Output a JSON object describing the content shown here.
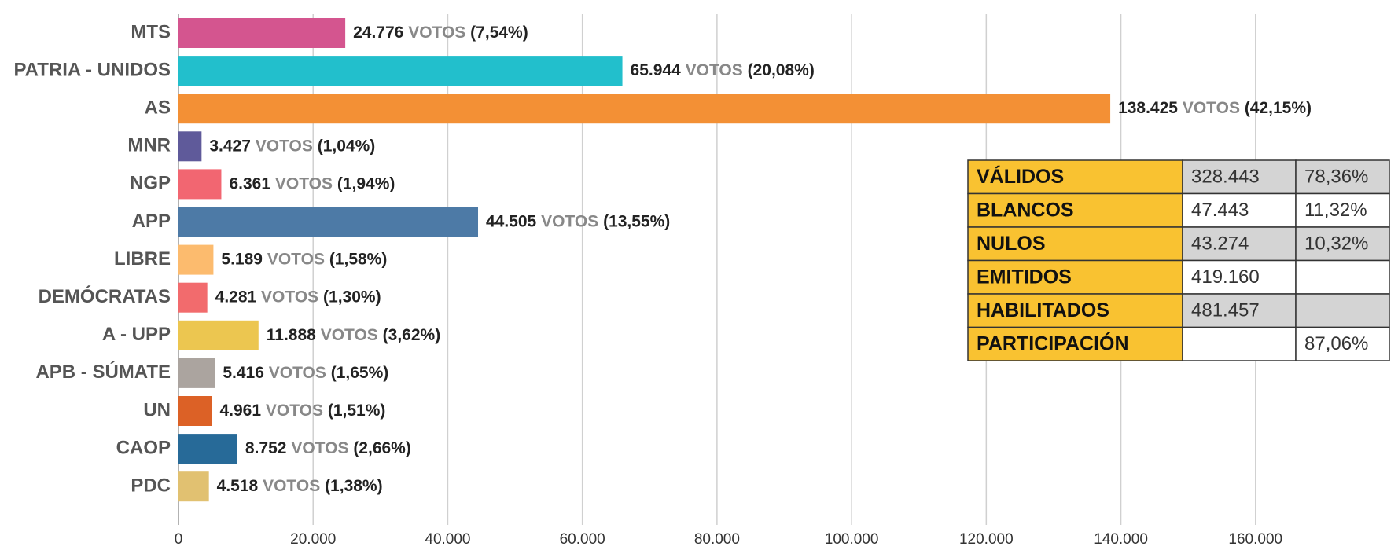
{
  "chart_data": {
    "type": "hbar",
    "categories": [
      "MTS",
      "PATRIA - UNIDOS",
      "AS",
      "MNR",
      "NGP",
      "APP",
      "LIBRE",
      "DEMÓCRATAS",
      "A - UPP",
      "APB - SÚMATE",
      "UN",
      "CAOP",
      "PDC"
    ],
    "values": [
      24776,
      65944,
      138425,
      3427,
      6361,
      44505,
      5189,
      4281,
      11888,
      5416,
      4961,
      8752,
      4518
    ],
    "value_labels": [
      "24.776",
      "65.944",
      "138.425",
      "3.427",
      "6.361",
      "44.505",
      "5.189",
      "4.281",
      "11.888",
      "5.416",
      "4.961",
      "8.752",
      "4.518"
    ],
    "unit_label": "VOTOS",
    "percents": [
      7.54,
      20.08,
      42.15,
      1.04,
      1.94,
      13.55,
      1.58,
      1.3,
      3.62,
      1.65,
      1.51,
      2.66,
      1.38
    ],
    "percent_labels": [
      "(7,54%)",
      "(20,08%)",
      "(42,15%)",
      "(1,04%)",
      "(1,94%)",
      "(13,55%)",
      "(1,58%)",
      "(1,30%)",
      "(3,62%)",
      "(1,65%)",
      "(1,51%)",
      "(2,66%)",
      "(1,38%)"
    ],
    "colors": [
      "#d4558f",
      "#22bfcc",
      "#f39035",
      "#5f5a9a",
      "#f26671",
      "#4d7aa6",
      "#fcbb6e",
      "#f26b6d",
      "#ecc650",
      "#aba49f",
      "#dc6126",
      "#276a98",
      "#e1c171"
    ],
    "xlim": [
      0,
      180000
    ],
    "xticks": [
      0,
      {
        "value": 20000,
        "label": "20.000"
      },
      {
        "value": 40000,
        "label": "40.000"
      },
      {
        "value": 60000,
        "label": "60.000"
      },
      {
        "value": 80000,
        "label": "80.000"
      },
      {
        "value": 100000,
        "label": "100.000"
      },
      {
        "value": 120000,
        "label": "120.000"
      },
      {
        "value": 140000,
        "label": "140.000"
      },
      {
        "value": 160000,
        "label": "160.000"
      }
    ],
    "grid": true
  },
  "table": {
    "rows": [
      [
        "VÁLIDOS",
        "328.443",
        "78,36%"
      ],
      [
        "BLANCOS",
        "47.443",
        "11,32%"
      ],
      [
        "NULOS",
        "43.274",
        "10,32%"
      ],
      [
        "EMITIDOS",
        "419.160",
        null
      ],
      [
        "HABILITADOS",
        "481.457",
        null
      ],
      [
        "PARTICIPACIÓN",
        null,
        "87,06%"
      ]
    ]
  }
}
